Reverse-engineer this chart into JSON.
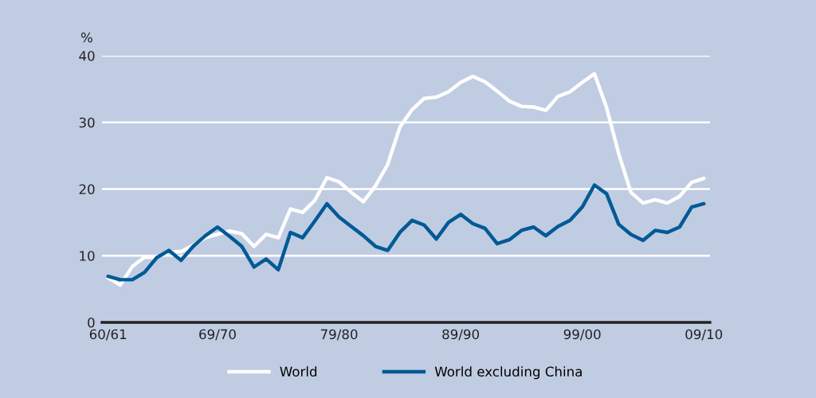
{
  "chart_data": {
    "type": "line",
    "ylabel": "%",
    "categories": [
      "60/61",
      null,
      null,
      null,
      null,
      null,
      null,
      null,
      null,
      "69/70",
      null,
      null,
      null,
      null,
      null,
      null,
      null,
      null,
      null,
      "79/80",
      null,
      null,
      null,
      null,
      null,
      null,
      null,
      null,
      null,
      "89/90",
      null,
      null,
      null,
      null,
      null,
      null,
      null,
      null,
      null,
      "99/00",
      null,
      null,
      null,
      null,
      null,
      null,
      null,
      null,
      null,
      "09/10"
    ],
    "series": [
      {
        "name": "World",
        "color": "#ffffff",
        "values": [
          6.7,
          5.6,
          8.4,
          9.8,
          9.7,
          10.6,
          10.6,
          11.6,
          12.7,
          13.2,
          13.7,
          13.3,
          11.4,
          13.2,
          12.7,
          17.0,
          16.5,
          18.3,
          21.7,
          21.1,
          19.5,
          18.1,
          20.5,
          23.7,
          29.3,
          31.9,
          33.6,
          33.8,
          34.6,
          36.0,
          36.9,
          36.1,
          34.7,
          33.2,
          32.4,
          32.3,
          31.8,
          33.9,
          34.6,
          36.0,
          37.3,
          32.2,
          25.3,
          19.5,
          17.9,
          18.4,
          17.9,
          18.9,
          21.0,
          21.6
        ]
      },
      {
        "name": "World excluding China",
        "color": "#005a96",
        "values": [
          6.9,
          6.4,
          6.4,
          7.5,
          9.7,
          10.8,
          9.3,
          11.4,
          13.0,
          14.3,
          12.9,
          11.4,
          8.3,
          9.5,
          7.9,
          13.5,
          12.7,
          15.2,
          17.8,
          15.8,
          14.4,
          13.0,
          11.4,
          10.8,
          13.5,
          15.3,
          14.6,
          12.5,
          15.0,
          16.2,
          14.8,
          14.1,
          11.8,
          12.4,
          13.8,
          14.3,
          13.0,
          14.4,
          15.3,
          17.3,
          20.6,
          19.3,
          14.7,
          13.2,
          12.3,
          13.8,
          13.5,
          14.3,
          17.3,
          17.8
        ]
      }
    ],
    "ylim": [
      0,
      40
    ],
    "yticks": [
      0,
      10,
      20,
      30,
      40
    ],
    "grid": "y",
    "legend": "bottom",
    "marker": "none",
    "line_style": "solid"
  }
}
